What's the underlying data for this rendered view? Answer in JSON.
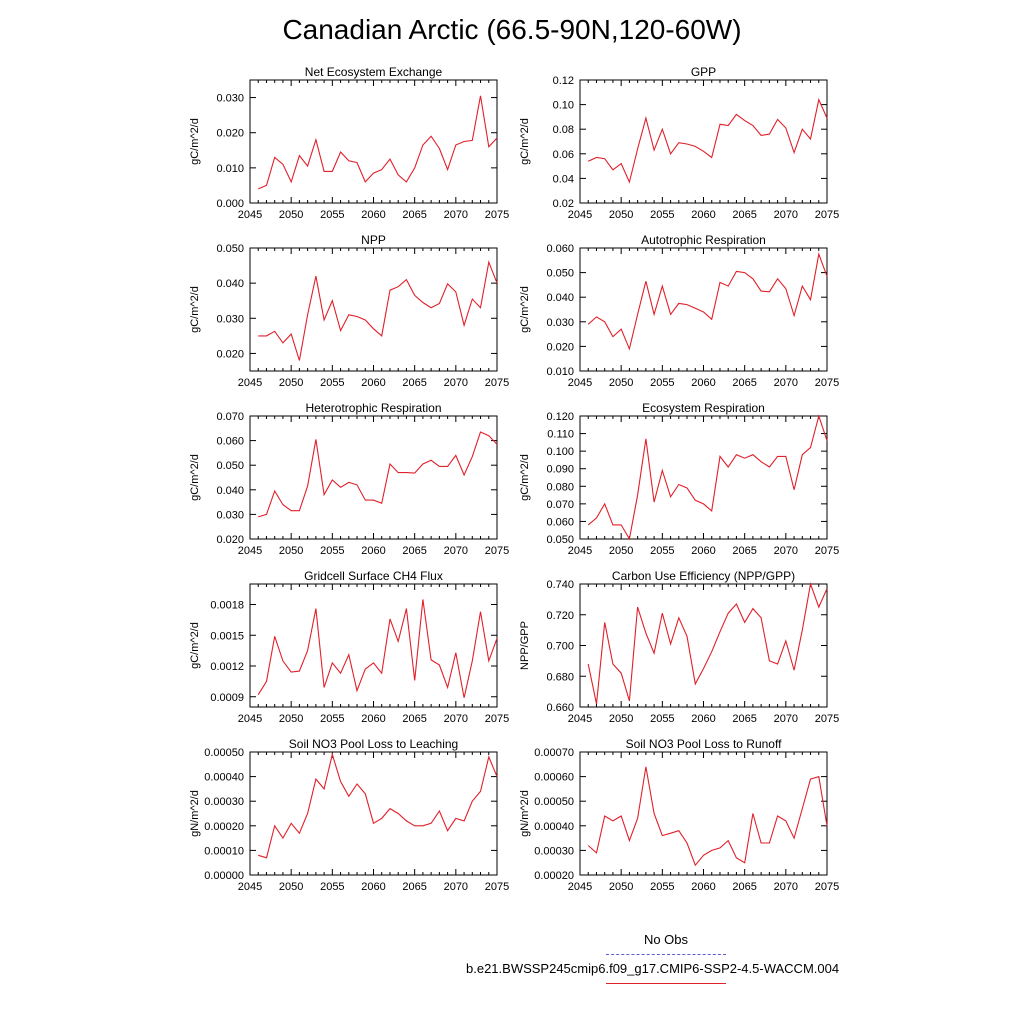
{
  "title": "Canadian Arctic (66.5-90N,120-60W)",
  "legend": {
    "obs_label": "No Obs",
    "obs_color": "#5b5bd6",
    "model_label": "b.e21.BWSSP245cmip6.f09_g17.CMIP6-SSP2-4.5-WACCM.004",
    "model_color": "#e0202a"
  },
  "chart_data": [
    {
      "type": "line",
      "title": "Net Ecosystem Exchange",
      "ylabel": "gC/m^2/d",
      "xlim": [
        2045,
        2075
      ],
      "xticks": [
        2045,
        2050,
        2055,
        2060,
        2065,
        2070,
        2075
      ],
      "ylim": [
        0.0,
        0.035
      ],
      "yticks": [
        0.0,
        0.01,
        0.02,
        0.03
      ],
      "ytick_labels": [
        "0.000",
        "0.010",
        "0.020",
        "0.030"
      ],
      "x": [
        2046,
        2047,
        2048,
        2049,
        2050,
        2051,
        2052,
        2053,
        2054,
        2055,
        2056,
        2057,
        2058,
        2059,
        2060,
        2061,
        2062,
        2063,
        2064,
        2065,
        2066,
        2067,
        2068,
        2069,
        2070,
        2071,
        2072,
        2073,
        2074,
        2075
      ],
      "values": [
        0.004,
        0.005,
        0.013,
        0.011,
        0.006,
        0.0135,
        0.0105,
        0.018,
        0.009,
        0.009,
        0.0145,
        0.012,
        0.0115,
        0.006,
        0.0085,
        0.0095,
        0.0125,
        0.008,
        0.006,
        0.01,
        0.0165,
        0.019,
        0.0155,
        0.0095,
        0.0165,
        0.0175,
        0.0178,
        0.0305,
        0.016,
        0.0185
      ]
    },
    {
      "type": "line",
      "title": "GPP",
      "ylabel": "gC/m^2/d",
      "xlim": [
        2045,
        2075
      ],
      "xticks": [
        2045,
        2050,
        2055,
        2060,
        2065,
        2070,
        2075
      ],
      "ylim": [
        0.02,
        0.12
      ],
      "yticks": [
        0.02,
        0.04,
        0.06,
        0.08,
        0.1,
        0.12
      ],
      "ytick_labels": [
        "0.02",
        "0.04",
        "0.06",
        "0.08",
        "0.10",
        "0.12"
      ],
      "x": [
        2046,
        2047,
        2048,
        2049,
        2050,
        2051,
        2052,
        2053,
        2054,
        2055,
        2056,
        2057,
        2058,
        2059,
        2060,
        2061,
        2062,
        2063,
        2064,
        2065,
        2066,
        2067,
        2068,
        2069,
        2070,
        2071,
        2072,
        2073,
        2074,
        2075
      ],
      "values": [
        0.054,
        0.057,
        0.056,
        0.047,
        0.052,
        0.037,
        0.064,
        0.089,
        0.063,
        0.08,
        0.06,
        0.069,
        0.068,
        0.066,
        0.062,
        0.057,
        0.084,
        0.083,
        0.092,
        0.087,
        0.083,
        0.075,
        0.076,
        0.088,
        0.081,
        0.061,
        0.08,
        0.072,
        0.104,
        0.089
      ]
    },
    {
      "type": "line",
      "title": "NPP",
      "ylabel": "gC/m^2/d",
      "xlim": [
        2045,
        2075
      ],
      "xticks": [
        2045,
        2050,
        2055,
        2060,
        2065,
        2070,
        2075
      ],
      "ylim": [
        0.015,
        0.05
      ],
      "yticks": [
        0.02,
        0.03,
        0.04,
        0.05
      ],
      "ytick_labels": [
        "0.020",
        "0.030",
        "0.040",
        "0.050"
      ],
      "x": [
        2046,
        2047,
        2048,
        2049,
        2050,
        2051,
        2052,
        2053,
        2054,
        2055,
        2056,
        2057,
        2058,
        2059,
        2060,
        2061,
        2062,
        2063,
        2064,
        2065,
        2066,
        2067,
        2068,
        2069,
        2070,
        2071,
        2072,
        2073,
        2074,
        2075
      ],
      "values": [
        0.025,
        0.025,
        0.0263,
        0.023,
        0.0255,
        0.018,
        0.031,
        0.042,
        0.0295,
        0.035,
        0.0265,
        0.031,
        0.0305,
        0.0295,
        0.027,
        0.025,
        0.038,
        0.039,
        0.041,
        0.0365,
        0.0345,
        0.033,
        0.0342,
        0.0398,
        0.0375,
        0.028,
        0.0355,
        0.033,
        0.046,
        0.04
      ]
    },
    {
      "type": "line",
      "title": "Autotrophic Respiration",
      "ylabel": "gC/m^2/d",
      "xlim": [
        2045,
        2075
      ],
      "xticks": [
        2045,
        2050,
        2055,
        2060,
        2065,
        2070,
        2075
      ],
      "ylim": [
        0.01,
        0.06
      ],
      "yticks": [
        0.01,
        0.02,
        0.03,
        0.04,
        0.05,
        0.06
      ],
      "ytick_labels": [
        "0.010",
        "0.020",
        "0.030",
        "0.040",
        "0.050",
        "0.060"
      ],
      "x": [
        2046,
        2047,
        2048,
        2049,
        2050,
        2051,
        2052,
        2053,
        2054,
        2055,
        2056,
        2057,
        2058,
        2059,
        2060,
        2061,
        2062,
        2063,
        2064,
        2065,
        2066,
        2067,
        2068,
        2069,
        2070,
        2071,
        2072,
        2073,
        2074,
        2075
      ],
      "values": [
        0.029,
        0.032,
        0.03,
        0.024,
        0.027,
        0.019,
        0.033,
        0.0465,
        0.033,
        0.0445,
        0.033,
        0.0375,
        0.037,
        0.0355,
        0.034,
        0.031,
        0.046,
        0.0445,
        0.0505,
        0.05,
        0.0475,
        0.0425,
        0.0422,
        0.0475,
        0.0435,
        0.0325,
        0.0445,
        0.039,
        0.0575,
        0.0485
      ]
    },
    {
      "type": "line",
      "title": "Heterotrophic Respiration",
      "ylabel": "gC/m^2/d",
      "xlim": [
        2045,
        2075
      ],
      "xticks": [
        2045,
        2050,
        2055,
        2060,
        2065,
        2070,
        2075
      ],
      "ylim": [
        0.02,
        0.07
      ],
      "yticks": [
        0.02,
        0.03,
        0.04,
        0.05,
        0.06,
        0.07
      ],
      "ytick_labels": [
        "0.020",
        "0.030",
        "0.040",
        "0.050",
        "0.060",
        "0.070"
      ],
      "x": [
        2046,
        2047,
        2048,
        2049,
        2050,
        2051,
        2052,
        2053,
        2054,
        2055,
        2056,
        2057,
        2058,
        2059,
        2060,
        2061,
        2062,
        2063,
        2064,
        2065,
        2066,
        2067,
        2068,
        2069,
        2070,
        2071,
        2072,
        2073,
        2074,
        2075
      ],
      "values": [
        0.029,
        0.03,
        0.0395,
        0.034,
        0.0315,
        0.0315,
        0.0415,
        0.0605,
        0.038,
        0.044,
        0.041,
        0.043,
        0.042,
        0.0358,
        0.0358,
        0.0345,
        0.0505,
        0.047,
        0.047,
        0.0468,
        0.0505,
        0.052,
        0.0495,
        0.0495,
        0.054,
        0.046,
        0.0535,
        0.0635,
        0.062,
        0.0585
      ]
    },
    {
      "type": "line",
      "title": "Ecosystem Respiration",
      "ylabel": "gC/m^2/d",
      "xlim": [
        2045,
        2075
      ],
      "xticks": [
        2045,
        2050,
        2055,
        2060,
        2065,
        2070,
        2075
      ],
      "ylim": [
        0.05,
        0.12
      ],
      "yticks": [
        0.05,
        0.06,
        0.07,
        0.08,
        0.09,
        0.1,
        0.11,
        0.12
      ],
      "ytick_labels": [
        "0.050",
        "0.060",
        "0.070",
        "0.080",
        "0.090",
        "0.100",
        "0.110",
        "0.120"
      ],
      "x": [
        2046,
        2047,
        2048,
        2049,
        2050,
        2051,
        2052,
        2053,
        2054,
        2055,
        2056,
        2057,
        2058,
        2059,
        2060,
        2061,
        2062,
        2063,
        2064,
        2065,
        2066,
        2067,
        2068,
        2069,
        2070,
        2071,
        2072,
        2073,
        2074,
        2075
      ],
      "values": [
        0.058,
        0.062,
        0.07,
        0.058,
        0.058,
        0.05,
        0.075,
        0.107,
        0.071,
        0.089,
        0.074,
        0.081,
        0.079,
        0.072,
        0.07,
        0.066,
        0.097,
        0.091,
        0.098,
        0.096,
        0.098,
        0.094,
        0.091,
        0.097,
        0.097,
        0.078,
        0.098,
        0.102,
        0.12,
        0.106
      ]
    },
    {
      "type": "line",
      "title": "Gridcell Surface CH4 Flux",
      "ylabel": "gC/m^2/d",
      "xlim": [
        2045,
        2075
      ],
      "xticks": [
        2045,
        2050,
        2055,
        2060,
        2065,
        2070,
        2075
      ],
      "ylim": [
        0.0008,
        0.002
      ],
      "yticks": [
        0.0009,
        0.0012,
        0.0015,
        0.0018
      ],
      "ytick_labels": [
        "0.0009",
        "0.0012",
        "0.0015",
        "0.0018"
      ],
      "x": [
        2046,
        2047,
        2048,
        2049,
        2050,
        2051,
        2052,
        2053,
        2054,
        2055,
        2056,
        2057,
        2058,
        2059,
        2060,
        2061,
        2062,
        2063,
        2064,
        2065,
        2066,
        2067,
        2068,
        2069,
        2070,
        2071,
        2072,
        2073,
        2074,
        2075
      ],
      "values": [
        0.00092,
        0.00105,
        0.00149,
        0.00125,
        0.00114,
        0.00115,
        0.00135,
        0.00176,
        0.00099,
        0.00123,
        0.00113,
        0.00131,
        0.00096,
        0.00117,
        0.00123,
        0.00113,
        0.00166,
        0.00144,
        0.00176,
        0.00106,
        0.00185,
        0.00126,
        0.00121,
        0.00099,
        0.00133,
        0.00089,
        0.00125,
        0.00173,
        0.00125,
        0.00147
      ]
    },
    {
      "type": "line",
      "title": "Carbon Use Efficiency (NPP/GPP)",
      "ylabel": "NPP/GPP",
      "xlim": [
        2045,
        2075
      ],
      "xticks": [
        2045,
        2050,
        2055,
        2060,
        2065,
        2070,
        2075
      ],
      "ylim": [
        0.66,
        0.74
      ],
      "yticks": [
        0.66,
        0.68,
        0.7,
        0.72,
        0.74
      ],
      "ytick_labels": [
        "0.660",
        "0.680",
        "0.700",
        "0.720",
        "0.740"
      ],
      "x": [
        2046,
        2047,
        2048,
        2049,
        2050,
        2051,
        2052,
        2053,
        2054,
        2055,
        2056,
        2057,
        2058,
        2059,
        2060,
        2061,
        2062,
        2063,
        2064,
        2065,
        2066,
        2067,
        2068,
        2069,
        2070,
        2071,
        2072,
        2073,
        2074,
        2075
      ],
      "values": [
        0.688,
        0.662,
        0.715,
        0.688,
        0.682,
        0.664,
        0.725,
        0.708,
        0.695,
        0.721,
        0.701,
        0.718,
        0.706,
        0.675,
        0.685,
        0.696,
        0.709,
        0.721,
        0.727,
        0.715,
        0.724,
        0.718,
        0.69,
        0.688,
        0.703,
        0.684,
        0.71,
        0.74,
        0.725,
        0.737
      ]
    },
    {
      "type": "line",
      "title": "Soil NO3 Pool Loss to Leaching",
      "ylabel": "gN/m^2/d",
      "xlim": [
        2045,
        2075
      ],
      "xticks": [
        2045,
        2050,
        2055,
        2060,
        2065,
        2070,
        2075
      ],
      "ylim": [
        0.0,
        0.0005
      ],
      "yticks": [
        0.0,
        0.0001,
        0.0002,
        0.0003,
        0.0004,
        0.0005
      ],
      "ytick_labels": [
        "0.00000",
        "0.00010",
        "0.00020",
        "0.00030",
        "0.00040",
        "0.00050"
      ],
      "x": [
        2046,
        2047,
        2048,
        2049,
        2050,
        2051,
        2052,
        2053,
        2054,
        2055,
        2056,
        2057,
        2058,
        2059,
        2060,
        2061,
        2062,
        2063,
        2064,
        2065,
        2066,
        2067,
        2068,
        2069,
        2070,
        2071,
        2072,
        2073,
        2074,
        2075
      ],
      "values": [
        8e-05,
        7e-05,
        0.0002,
        0.00015,
        0.00021,
        0.00017,
        0.00025,
        0.00039,
        0.00035,
        0.00049,
        0.00038,
        0.00032,
        0.00037,
        0.00033,
        0.00021,
        0.00023,
        0.00027,
        0.00025,
        0.00022,
        0.0002,
        0.0002,
        0.00021,
        0.00026,
        0.00018,
        0.00023,
        0.00022,
        0.0003,
        0.00034,
        0.00048,
        0.0004
      ]
    },
    {
      "type": "line",
      "title": "Soil NO3 Pool Loss to Runoff",
      "ylabel": "gN/m^2/d",
      "xlim": [
        2045,
        2075
      ],
      "xticks": [
        2045,
        2050,
        2055,
        2060,
        2065,
        2070,
        2075
      ],
      "ylim": [
        0.0002,
        0.0007
      ],
      "yticks": [
        0.0002,
        0.0003,
        0.0004,
        0.0005,
        0.0006,
        0.0007
      ],
      "ytick_labels": [
        "0.00020",
        "0.00030",
        "0.00040",
        "0.00050",
        "0.00060",
        "0.00070"
      ],
      "x": [
        2046,
        2047,
        2048,
        2049,
        2050,
        2051,
        2052,
        2053,
        2054,
        2055,
        2056,
        2057,
        2058,
        2059,
        2060,
        2061,
        2062,
        2063,
        2064,
        2065,
        2066,
        2067,
        2068,
        2069,
        2070,
        2071,
        2072,
        2073,
        2074,
        2075
      ],
      "values": [
        0.00032,
        0.00029,
        0.00044,
        0.00042,
        0.00044,
        0.00034,
        0.00043,
        0.00064,
        0.00045,
        0.00036,
        0.00037,
        0.00038,
        0.00033,
        0.00024,
        0.00028,
        0.0003,
        0.00031,
        0.00034,
        0.00027,
        0.00025,
        0.00045,
        0.00033,
        0.00033,
        0.00044,
        0.00042,
        0.00035,
        0.00047,
        0.00059,
        0.0006,
        0.0004
      ]
    }
  ]
}
